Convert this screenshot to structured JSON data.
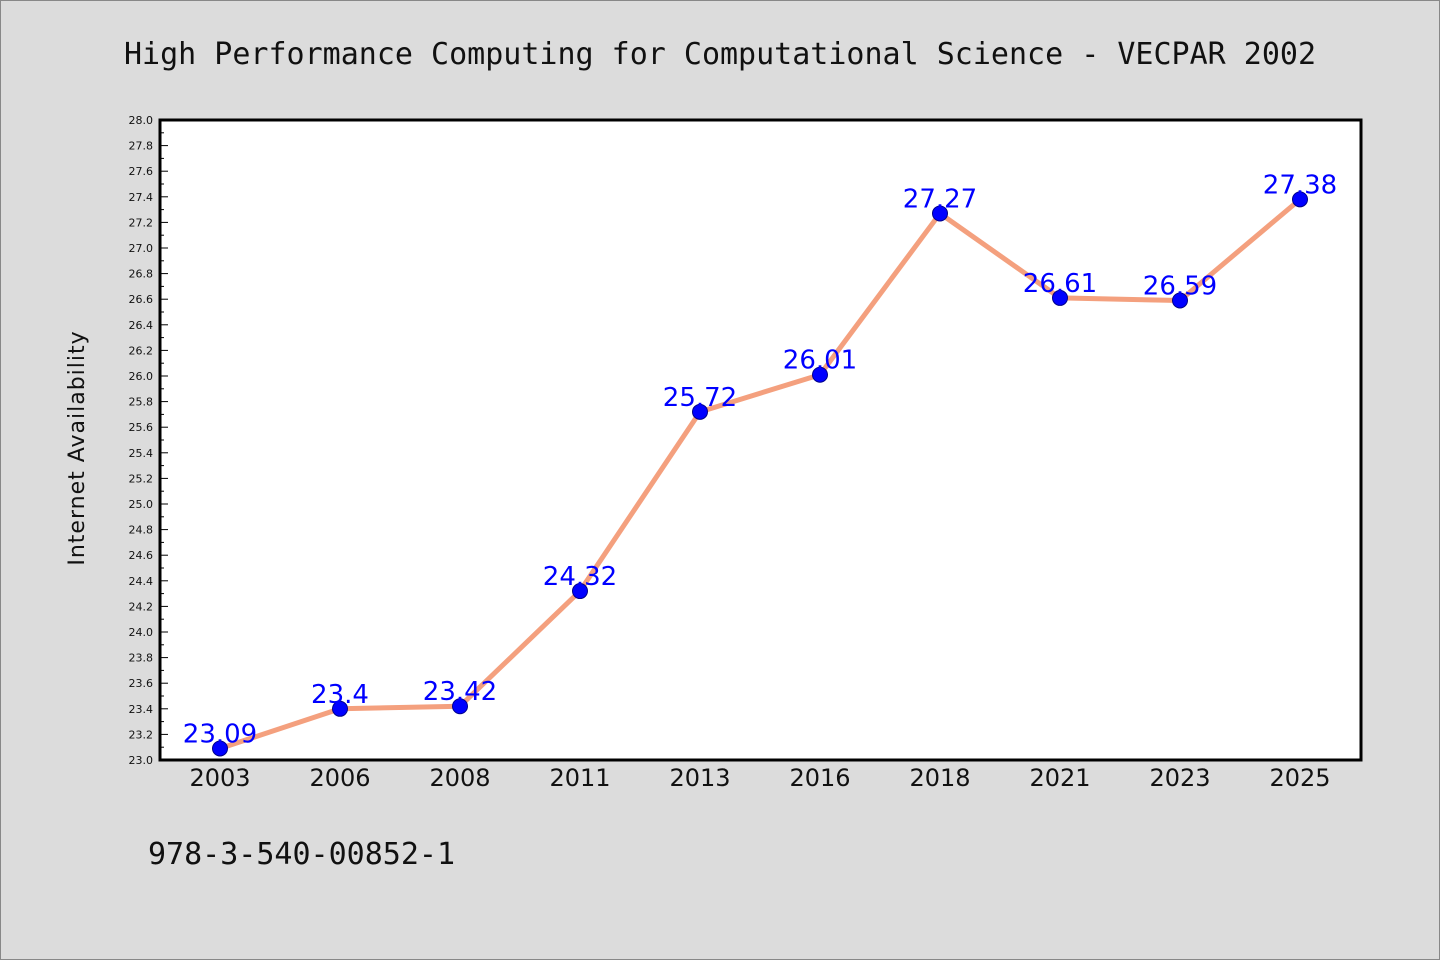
{
  "page": {
    "footnote": "978-3-540-00852-1"
  },
  "chart_data": {
    "type": "line",
    "title": "High Performance Computing for Computational Science - VECPAR 2002",
    "xlabel": "",
    "ylabel": "Internet Availability",
    "categories": [
      "2003",
      "2006",
      "2008",
      "2011",
      "2013",
      "2016",
      "2018",
      "2021",
      "2023",
      "2025"
    ],
    "series": [
      {
        "values": [
          23.09,
          23.4,
          23.42,
          24.32,
          25.72,
          26.01,
          27.27,
          26.61,
          26.59,
          27.38
        ],
        "labels": [
          "23.09",
          "23.4",
          "23.42",
          "24.32",
          "25.72",
          "26.01",
          "27.27",
          "26.61",
          "26.59",
          "27.38"
        ]
      }
    ],
    "ylim": [
      23.0,
      28.0
    ],
    "yticks": [
      "23.0",
      "23.2",
      "23.4",
      "23.6",
      "23.8",
      "24.0",
      "24.2",
      "24.4",
      "24.6",
      "24.8",
      "25.0",
      "25.2",
      "25.4",
      "25.6",
      "25.8",
      "26.0",
      "26.2",
      "26.4",
      "26.6",
      "26.8",
      "27.0",
      "27.2",
      "27.4",
      "27.6",
      "27.8",
      "28.0"
    ],
    "grid": false,
    "colors": {
      "line": "#f4a07e",
      "marker": "#0000ff",
      "data_label": "#0000ff",
      "plot_background": "#ffffff",
      "page_background": "#dcdcdc"
    }
  }
}
